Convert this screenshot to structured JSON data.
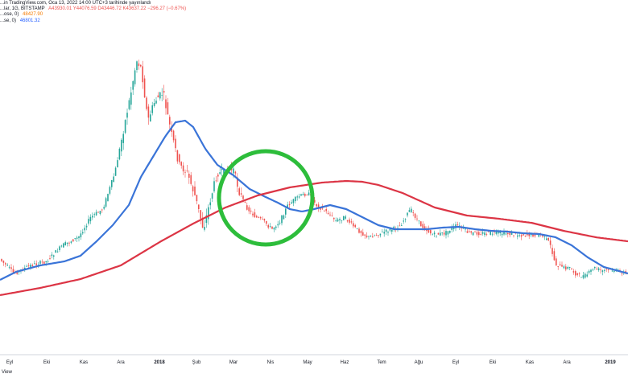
{
  "header": {
    "line1": "...in TradingView.com, Oca 13, 2022 14:00 UTC+3 tarihinde yayınlandı",
    "line2_label": "...lar, 1G, BITSTAMP",
    "line2_values": "A43930.01  Y44076.59  D43446.72  K43637.22  −296.27 (−0.67%)",
    "line3_label": "...ose, 0)",
    "line3_value": "48427.90",
    "line4_label": "...se, 0)",
    "line4_value": "46801.32"
  },
  "footer": {
    "text": "View"
  },
  "colors": {
    "up": "#26a69a",
    "down": "#ef5350",
    "ma_short": "#3a74d8",
    "ma_long": "#dc3545",
    "highlight_circle": "#2dbd3b",
    "header_red": "#ef5350",
    "header_blue": "#2962ff",
    "header_orange": "#f57c00",
    "axis_line": "#d1d4dc"
  },
  "chart_data": {
    "type": "candlestick",
    "title": "",
    "xlabel": "",
    "ylabel": "",
    "x_tick_labels": [
      "Eyl",
      "Eki",
      "Kas",
      "Ara",
      "2018",
      "Şub",
      "Mar",
      "Nis",
      "May",
      "Haz",
      "Tem",
      "Ağu",
      "Eyl",
      "Eki",
      "Kas",
      "Ara",
      "2019"
    ],
    "bold_ticks": [
      "2018",
      "2019"
    ],
    "grid": false,
    "legend": "none",
    "price_trend": [
      {
        "t": 0,
        "v": 320
      },
      {
        "t": 20,
        "v": 340
      },
      {
        "t": 40,
        "v": 330
      },
      {
        "t": 60,
        "v": 325
      },
      {
        "t": 80,
        "v": 305
      },
      {
        "t": 100,
        "v": 295
      },
      {
        "t": 115,
        "v": 270
      },
      {
        "t": 130,
        "v": 260
      },
      {
        "t": 145,
        "v": 215
      },
      {
        "t": 155,
        "v": 165
      },
      {
        "t": 165,
        "v": 115
      },
      {
        "t": 172,
        "v": 75
      },
      {
        "t": 178,
        "v": 85
      },
      {
        "t": 186,
        "v": 150
      },
      {
        "t": 195,
        "v": 125
      },
      {
        "t": 205,
        "v": 115
      },
      {
        "t": 215,
        "v": 165
      },
      {
        "t": 225,
        "v": 205
      },
      {
        "t": 235,
        "v": 215
      },
      {
        "t": 245,
        "v": 245
      },
      {
        "t": 255,
        "v": 285
      },
      {
        "t": 262,
        "v": 255
      },
      {
        "t": 272,
        "v": 215
      },
      {
        "t": 282,
        "v": 215
      },
      {
        "t": 292,
        "v": 210
      },
      {
        "t": 300,
        "v": 240
      },
      {
        "t": 310,
        "v": 260
      },
      {
        "t": 320,
        "v": 270
      },
      {
        "t": 330,
        "v": 275
      },
      {
        "t": 340,
        "v": 285
      },
      {
        "t": 350,
        "v": 275
      },
      {
        "t": 360,
        "v": 255
      },
      {
        "t": 372,
        "v": 245
      },
      {
        "t": 385,
        "v": 240
      },
      {
        "t": 395,
        "v": 255
      },
      {
        "t": 410,
        "v": 265
      },
      {
        "t": 420,
        "v": 275
      },
      {
        "t": 430,
        "v": 270
      },
      {
        "t": 445,
        "v": 285
      },
      {
        "t": 460,
        "v": 295
      },
      {
        "t": 475,
        "v": 290
      },
      {
        "t": 490,
        "v": 285
      },
      {
        "t": 500,
        "v": 280
      },
      {
        "t": 512,
        "v": 260
      },
      {
        "t": 525,
        "v": 280
      },
      {
        "t": 540,
        "v": 292
      },
      {
        "t": 555,
        "v": 290
      },
      {
        "t": 570,
        "v": 280
      },
      {
        "t": 585,
        "v": 290
      },
      {
        "t": 600,
        "v": 290
      },
      {
        "t": 615,
        "v": 290
      },
      {
        "t": 630,
        "v": 290
      },
      {
        "t": 645,
        "v": 292
      },
      {
        "t": 660,
        "v": 292
      },
      {
        "t": 675,
        "v": 292
      },
      {
        "t": 685,
        "v": 302
      },
      {
        "t": 692,
        "v": 328
      },
      {
        "t": 700,
        "v": 333
      },
      {
        "t": 710,
        "v": 333
      },
      {
        "t": 720,
        "v": 343
      },
      {
        "t": 730,
        "v": 343
      },
      {
        "t": 740,
        "v": 333
      },
      {
        "t": 750,
        "v": 337
      },
      {
        "t": 760,
        "v": 335
      },
      {
        "t": 770,
        "v": 337
      },
      {
        "t": 780,
        "v": 340
      }
    ],
    "series": [
      {
        "values": [
          {
            "t": 0,
            "v": 348
          },
          {
            "t": 20,
            "v": 338
          },
          {
            "t": 50,
            "v": 330
          },
          {
            "t": 80,
            "v": 325
          },
          {
            "t": 100,
            "v": 318
          },
          {
            "t": 120,
            "v": 300
          },
          {
            "t": 140,
            "v": 280
          },
          {
            "t": 160,
            "v": 255
          },
          {
            "t": 175,
            "v": 220
          },
          {
            "t": 190,
            "v": 195
          },
          {
            "t": 205,
            "v": 170
          },
          {
            "t": 218,
            "v": 152
          },
          {
            "t": 230,
            "v": 150
          },
          {
            "t": 240,
            "v": 158
          },
          {
            "t": 255,
            "v": 185
          },
          {
            "t": 270,
            "v": 205
          },
          {
            "t": 290,
            "v": 218
          },
          {
            "t": 310,
            "v": 235
          },
          {
            "t": 330,
            "v": 245
          },
          {
            "t": 345,
            "v": 252
          },
          {
            "t": 360,
            "v": 260
          },
          {
            "t": 375,
            "v": 263
          },
          {
            "t": 390,
            "v": 260
          },
          {
            "t": 410,
            "v": 255
          },
          {
            "t": 430,
            "v": 260
          },
          {
            "t": 450,
            "v": 270
          },
          {
            "t": 470,
            "v": 280
          },
          {
            "t": 490,
            "v": 285
          },
          {
            "t": 510,
            "v": 285
          },
          {
            "t": 530,
            "v": 285
          },
          {
            "t": 550,
            "v": 283
          },
          {
            "t": 570,
            "v": 282
          },
          {
            "t": 590,
            "v": 285
          },
          {
            "t": 610,
            "v": 287
          },
          {
            "t": 630,
            "v": 288
          },
          {
            "t": 650,
            "v": 290
          },
          {
            "t": 670,
            "v": 291
          },
          {
            "t": 690,
            "v": 295
          },
          {
            "t": 710,
            "v": 305
          },
          {
            "t": 730,
            "v": 320
          },
          {
            "t": 750,
            "v": 332
          },
          {
            "t": 765,
            "v": 336
          },
          {
            "t": 780,
            "v": 340
          }
        ]
      },
      {
        "values": [
          {
            "t": 0,
            "v": 367
          },
          {
            "t": 50,
            "v": 358
          },
          {
            "t": 100,
            "v": 347
          },
          {
            "t": 150,
            "v": 330
          },
          {
            "t": 200,
            "v": 300
          },
          {
            "t": 240,
            "v": 278
          },
          {
            "t": 280,
            "v": 258
          },
          {
            "t": 320,
            "v": 243
          },
          {
            "t": 360,
            "v": 233
          },
          {
            "t": 400,
            "v": 227
          },
          {
            "t": 430,
            "v": 225
          },
          {
            "t": 450,
            "v": 226
          },
          {
            "t": 470,
            "v": 230
          },
          {
            "t": 500,
            "v": 240
          },
          {
            "t": 540,
            "v": 258
          },
          {
            "t": 580,
            "v": 268
          },
          {
            "t": 620,
            "v": 272
          },
          {
            "t": 660,
            "v": 277
          },
          {
            "t": 700,
            "v": 287
          },
          {
            "t": 740,
            "v": 295
          },
          {
            "t": 780,
            "v": 300
          }
        ]
      }
    ],
    "annotations": [
      {
        "type": "circle",
        "color": "#2dbd3b",
        "cx": 330,
        "cy": 246,
        "r": 58
      }
    ]
  }
}
